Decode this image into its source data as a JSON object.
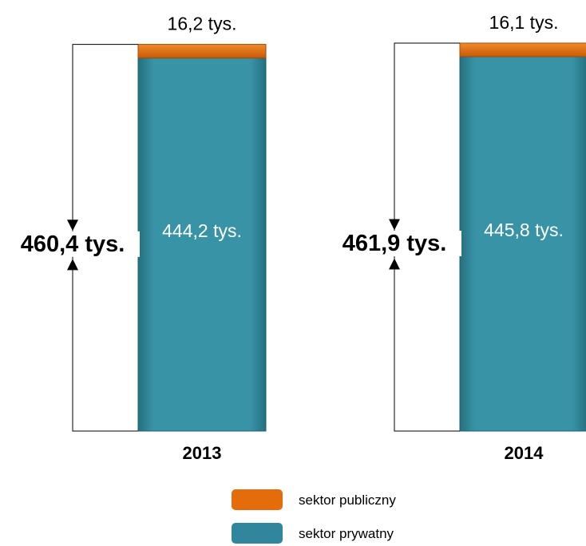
{
  "chart_data": {
    "type": "bar",
    "stacked": true,
    "categories": [
      "2013",
      "2014"
    ],
    "series": [
      {
        "name": "sektor publiczny",
        "values": [
          16.2,
          16.1
        ],
        "color": "#E46C0A"
      },
      {
        "name": "sektor prywatny",
        "values": [
          444.2,
          445.8
        ],
        "color": "#31859C"
      }
    ],
    "totals": [
      460.4,
      461.9
    ],
    "value_labels": {
      "public": [
        "16,2 tys.",
        "16,1 tys."
      ],
      "private": [
        "444,2 tys.",
        "445,8 tys."
      ],
      "total": [
        "460,4 tys.",
        "461,9 tys."
      ]
    },
    "legend": [
      {
        "label": "sektor publiczny",
        "color": "#E46C0A"
      },
      {
        "label": "sektor prywatny",
        "color": "#31859C"
      }
    ],
    "legend_position": "bottom-center",
    "grid": false
  }
}
